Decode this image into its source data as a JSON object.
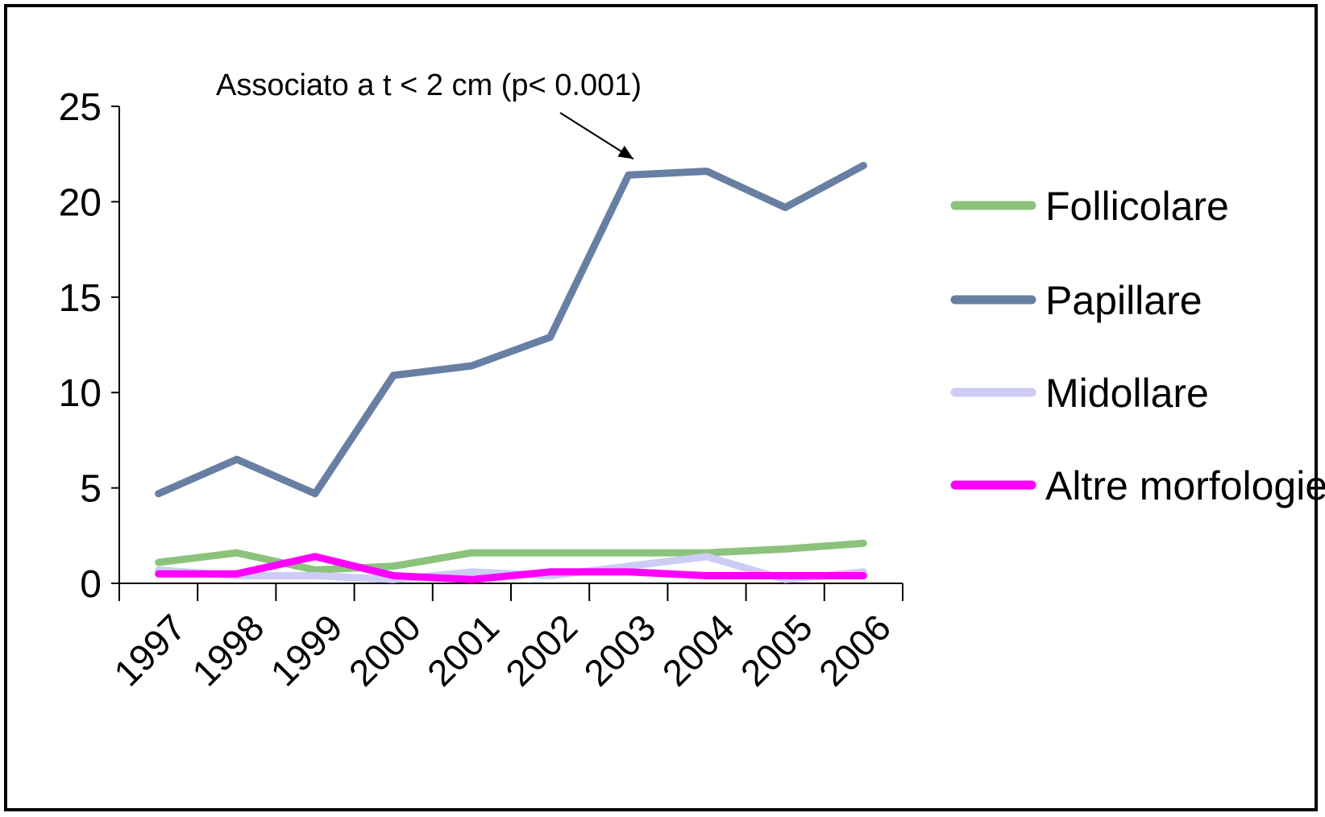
{
  "chart_data": {
    "type": "line",
    "title": "",
    "xlabel": "",
    "ylabel": "",
    "categories": [
      "1997",
      "1998",
      "1999",
      "2000",
      "2001",
      "2002",
      "2003",
      "2004",
      "2005",
      "2006"
    ],
    "ylim": [
      0,
      25
    ],
    "yticks": [
      0,
      5,
      10,
      15,
      20,
      25
    ],
    "grid": false,
    "legend_position": "right",
    "series": [
      {
        "name": "Follicolare",
        "color": "#8CC37C",
        "values": [
          1.1,
          1.6,
          0.7,
          0.9,
          1.6,
          1.6,
          1.6,
          1.6,
          1.8,
          2.1
        ]
      },
      {
        "name": "Papillare",
        "color": "#677FA3",
        "values": [
          4.7,
          6.5,
          4.7,
          10.9,
          11.4,
          12.9,
          21.4,
          21.6,
          19.7,
          21.9
        ]
      },
      {
        "name": "Midollare",
        "color": "#CCCCF5",
        "values": [
          0.7,
          0.4,
          0.4,
          0.2,
          0.6,
          0.4,
          0.9,
          1.4,
          0.2,
          0.6
        ]
      },
      {
        "name": "Altre morfologie",
        "color": "#FF00FF",
        "values": [
          0.5,
          0.5,
          1.4,
          0.4,
          0.2,
          0.6,
          0.6,
          0.4,
          0.4,
          0.4
        ]
      }
    ],
    "annotation": {
      "text": "Associato a t < 2 cm (p< 0.001)",
      "series": "Papillare",
      "category": "2003"
    }
  }
}
